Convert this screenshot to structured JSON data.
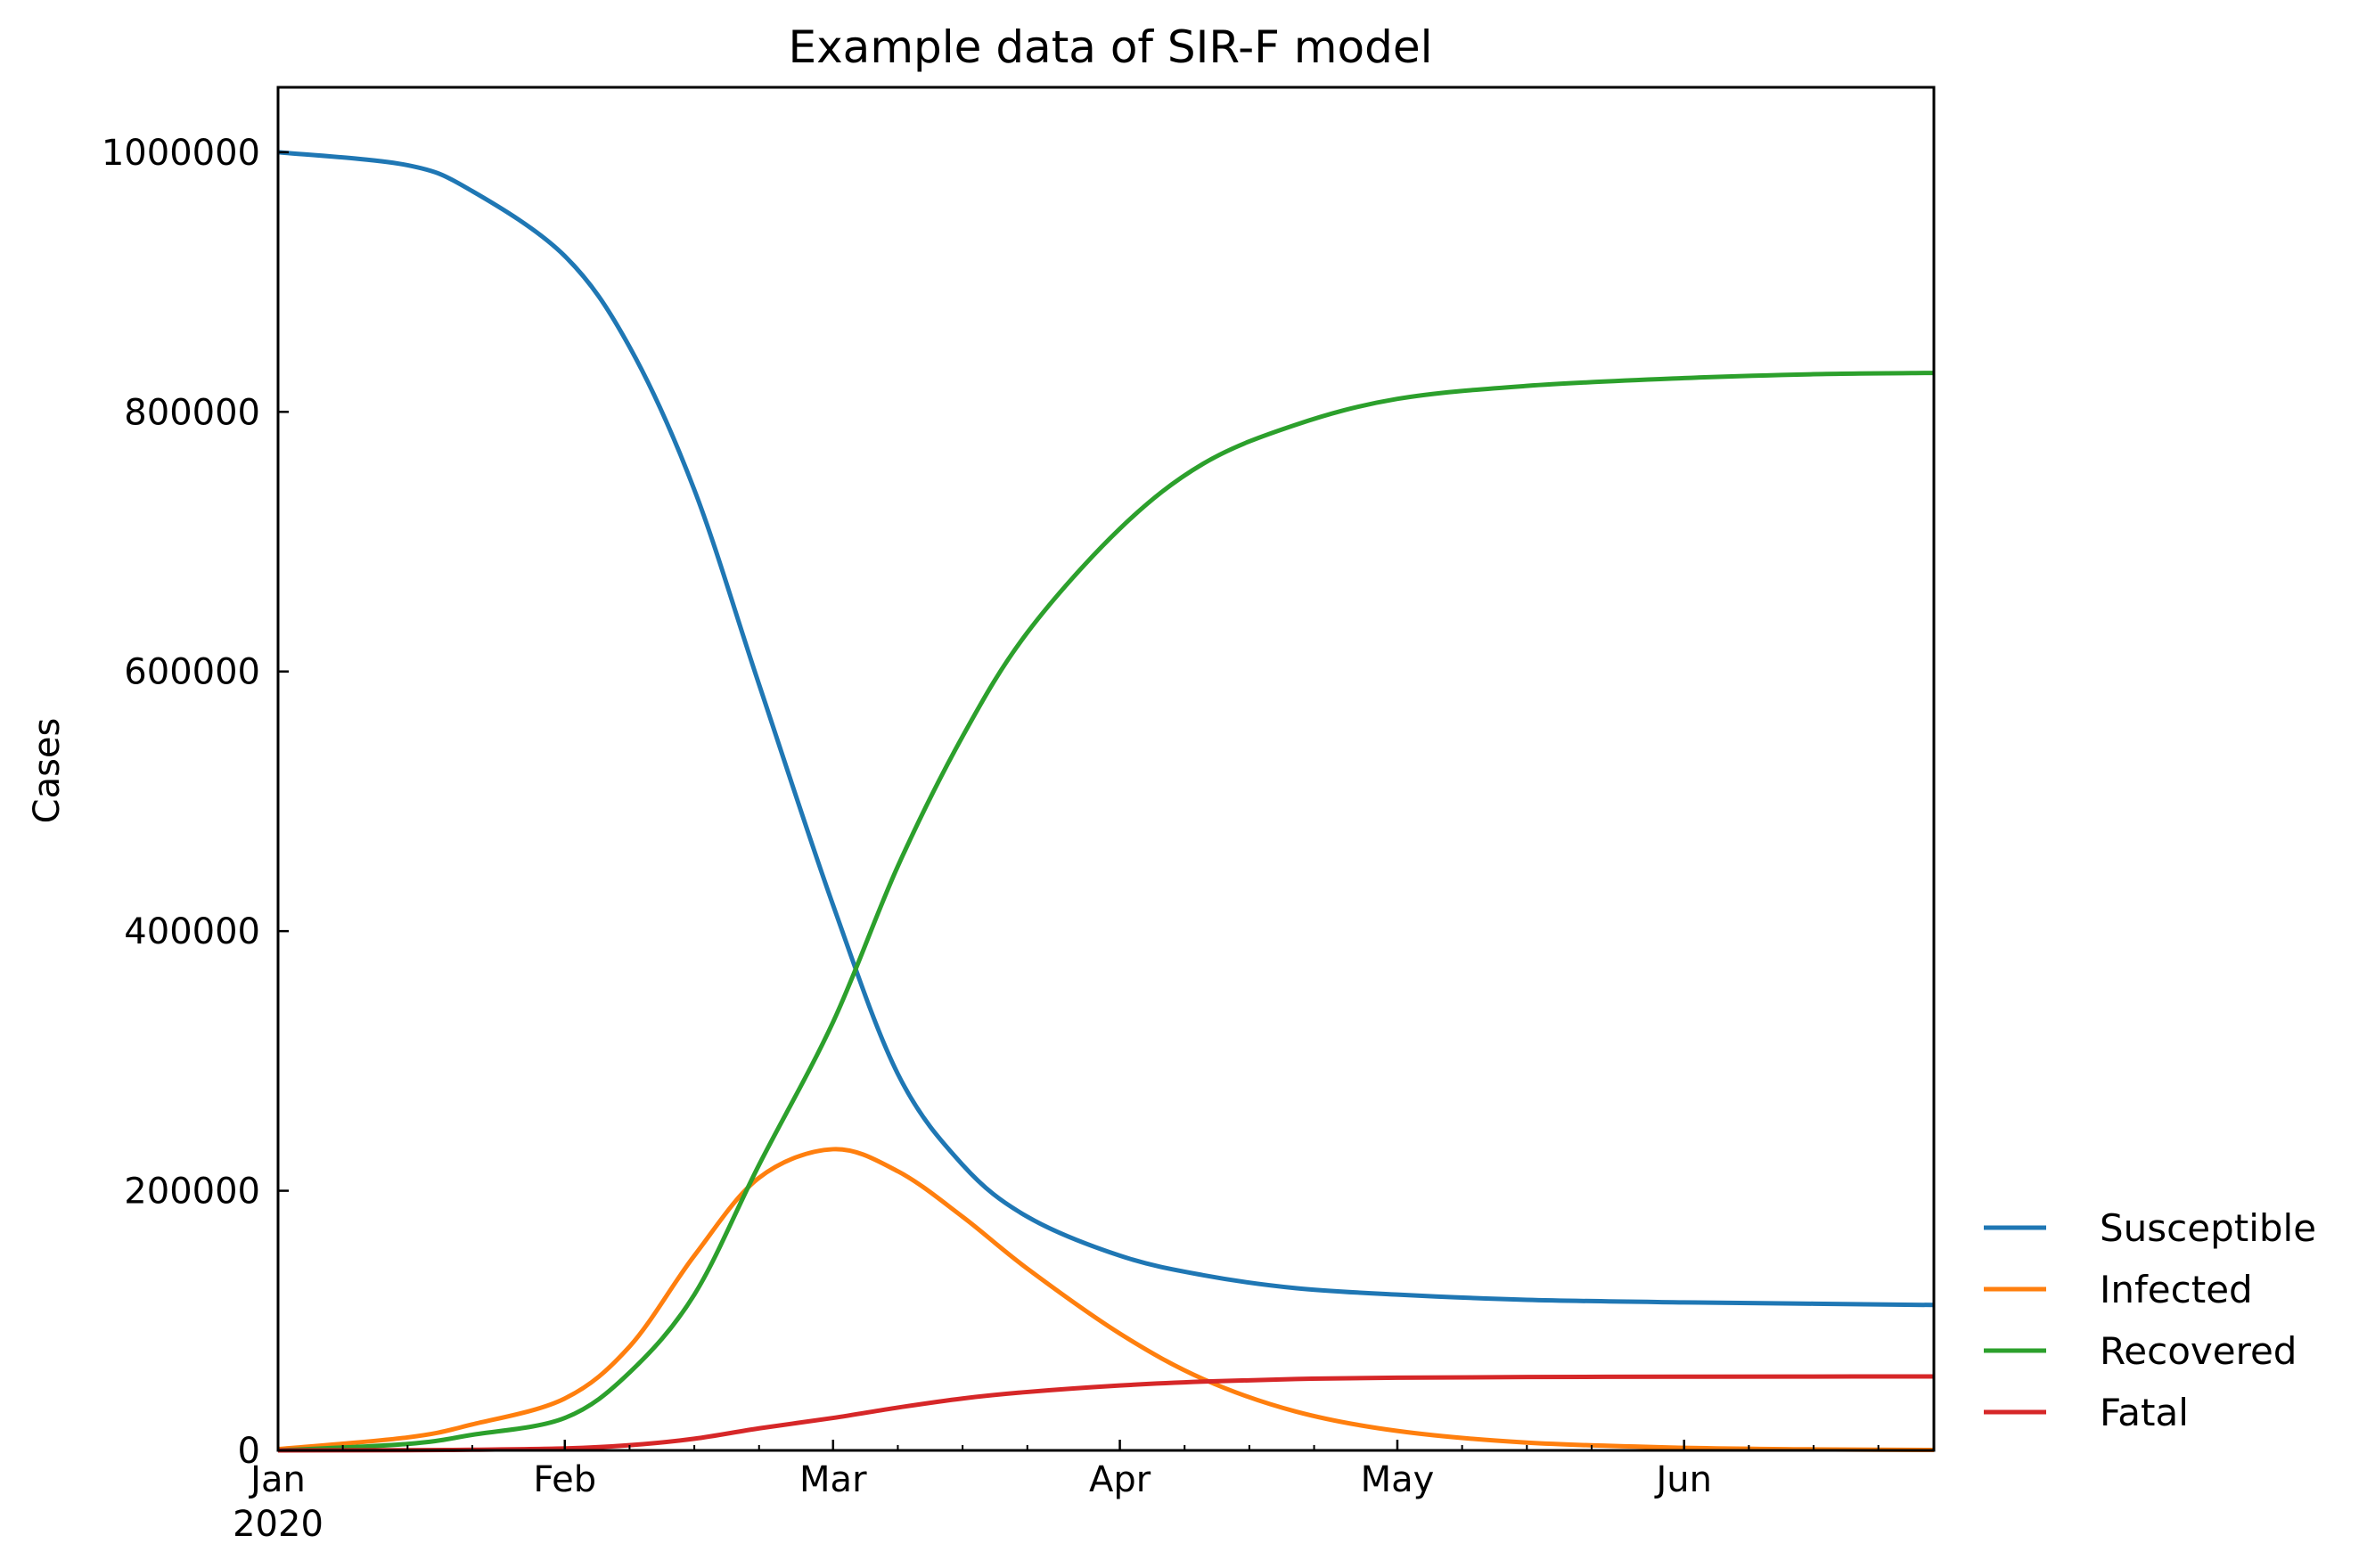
{
  "chart_data": {
    "type": "line",
    "title": "Example data of SIR-F model",
    "xlabel": "",
    "ylabel": "Cases",
    "x_axis_type": "date",
    "xlim": [
      "2020-01-01",
      "2020-06-28"
    ],
    "ylim": [
      0,
      1050000
    ],
    "x_ticks": [
      {
        "date": "2020-01-01",
        "label": "Jan",
        "sublabel": "2020"
      },
      {
        "date": "2020-02-01",
        "label": "Feb",
        "sublabel": ""
      },
      {
        "date": "2020-03-01",
        "label": "Mar",
        "sublabel": ""
      },
      {
        "date": "2020-04-01",
        "label": "Apr",
        "sublabel": ""
      },
      {
        "date": "2020-05-01",
        "label": "May",
        "sublabel": ""
      },
      {
        "date": "2020-06-01",
        "label": "Jun",
        "sublabel": ""
      }
    ],
    "y_ticks": [
      {
        "value": 0,
        "label": "0"
      },
      {
        "value": 200000,
        "label": "200000"
      },
      {
        "value": 400000,
        "label": "400000"
      },
      {
        "value": 600000,
        "label": "600000"
      },
      {
        "value": 800000,
        "label": "800000"
      },
      {
        "value": 1000000,
        "label": "1000000"
      }
    ],
    "grid": false,
    "legend_position": "outside-bottom-right",
    "x": [
      "2020-01-01",
      "2020-01-15",
      "2020-01-22",
      "2020-02-01",
      "2020-02-08",
      "2020-02-15",
      "2020-02-22",
      "2020-03-01",
      "2020-03-08",
      "2020-03-15",
      "2020-03-22",
      "2020-04-01",
      "2020-04-10",
      "2020-04-20",
      "2020-05-01",
      "2020-05-15",
      "2020-06-01",
      "2020-06-15",
      "2020-06-28"
    ],
    "series": [
      {
        "name": "Susceptible",
        "color": "#1f77b4",
        "values": [
          1000000,
          990000,
          970000,
          920000,
          850000,
          740000,
          590000,
          420000,
          290000,
          220000,
          180000,
          150000,
          135000,
          125000,
          120000,
          116000,
          114000,
          113000,
          112000
        ]
      },
      {
        "name": "Infected",
        "color": "#ff7f0e",
        "values": [
          1000,
          10000,
          20000,
          40000,
          80000,
          150000,
          210000,
          232000,
          215000,
          180000,
          140000,
          90000,
          55000,
          30000,
          15000,
          6000,
          2000,
          800,
          300
        ]
      },
      {
        "name": "Recovered",
        "color": "#2ca02c",
        "values": [
          0,
          5000,
          12000,
          25000,
          60000,
          120000,
          220000,
          330000,
          450000,
          550000,
          630000,
          710000,
          760000,
          790000,
          810000,
          820000,
          826000,
          829000,
          830000
        ]
      },
      {
        "name": "Fatal",
        "color": "#d62728",
        "values": [
          0,
          200,
          500,
          1500,
          4000,
          9000,
          17000,
          25000,
          33000,
          40000,
          45000,
          50000,
          53000,
          55000,
          56000,
          56500,
          56800,
          56900,
          57000
        ]
      }
    ]
  }
}
